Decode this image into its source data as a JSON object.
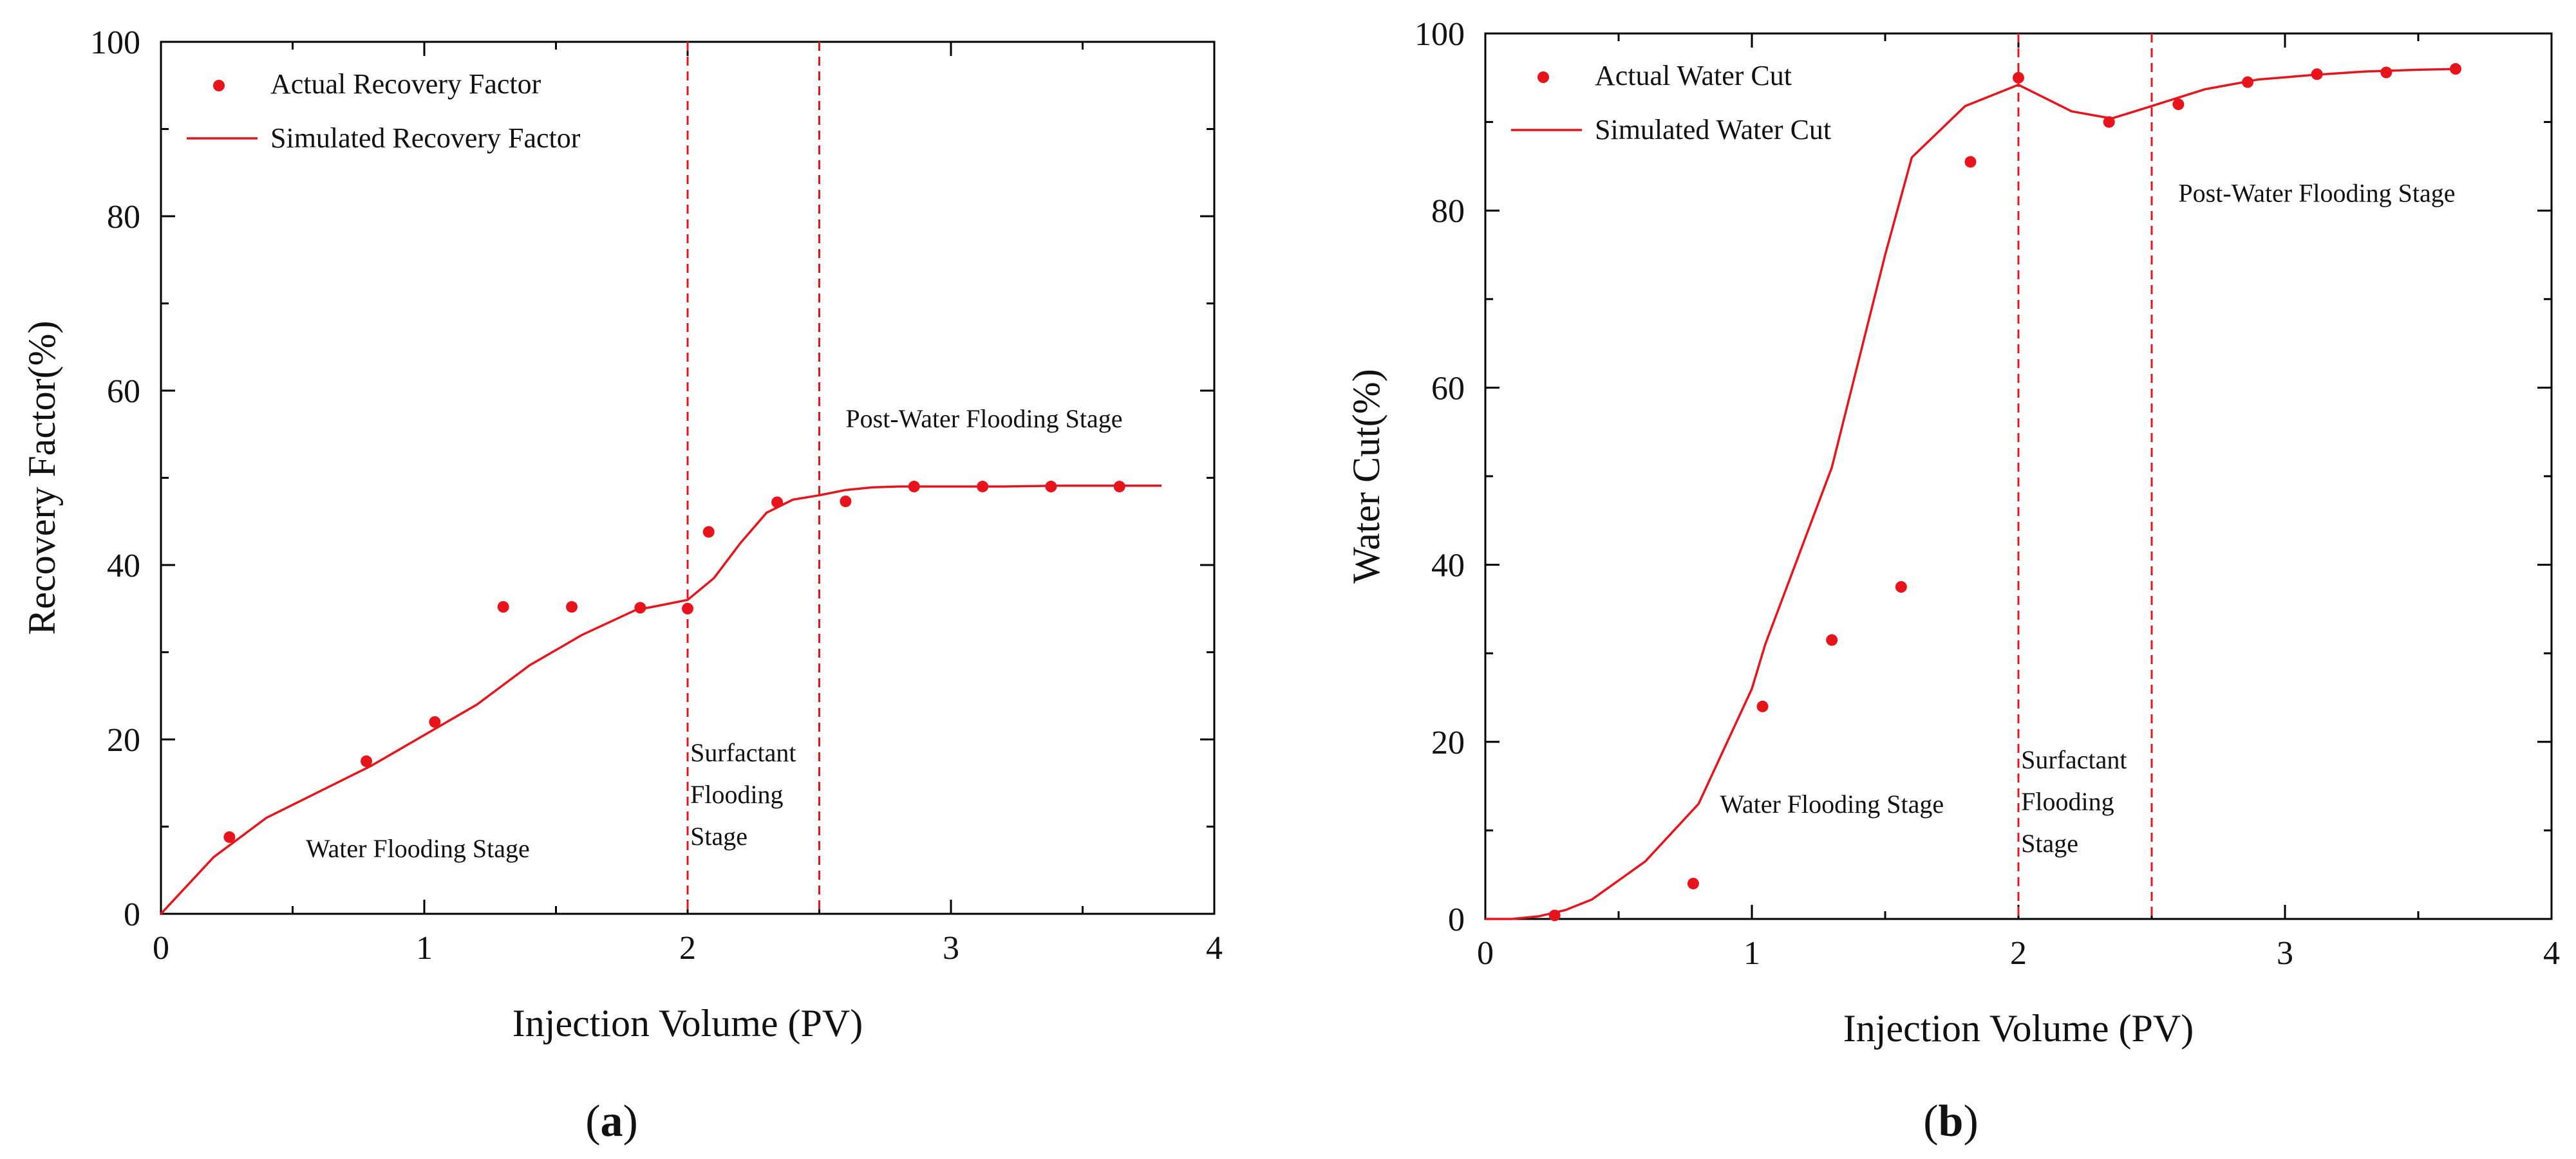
{
  "colors": {
    "series": "#e8141c",
    "axis": "#000000",
    "stage_line": "#e8141c"
  },
  "charts": [
    {
      "caption_letter": "a",
      "chart_data": {
        "type": "line",
        "xlabel": "Injection Volume (PV)",
        "ylabel": "Recovery Factor(%)",
        "xlim": [
          0,
          4
        ],
        "ylim": [
          0,
          100
        ],
        "xticks": [
          0,
          1,
          2,
          3,
          4
        ],
        "yticks": [
          0,
          20,
          40,
          60,
          80,
          100
        ],
        "legend_position": "top-left",
        "series": [
          {
            "name": "Actual Recovery Factor",
            "kind": "scatter",
            "x": [
              0.26,
              0.78,
              1.04,
              1.3,
              1.56,
              1.82,
              2.0,
              2.08,
              2.34,
              2.6,
              2.86,
              3.12,
              3.38,
              3.64
            ],
            "y": [
              8.8,
              17.5,
              22.0,
              35.2,
              35.2,
              35.1,
              35.0,
              43.8,
              47.2,
              47.3,
              49.0,
              49.0,
              49.0,
              49.0
            ]
          },
          {
            "name": "Simulated Recovery Factor",
            "kind": "line",
            "x": [
              0,
              0.2,
              0.4,
              0.6,
              0.8,
              1.0,
              1.2,
              1.4,
              1.6,
              1.8,
              2.0,
              2.1,
              2.2,
              2.3,
              2.4,
              2.5,
              2.6,
              2.7,
              2.8,
              3.0,
              3.2,
              3.4,
              3.6,
              3.8
            ],
            "y": [
              0,
              6.5,
              11,
              14,
              17,
              20.5,
              24,
              28.5,
              32,
              34.8,
              36,
              38.5,
              42.5,
              46,
              47.5,
              48,
              48.6,
              48.9,
              49,
              49,
              49,
              49.1,
              49.1,
              49.1
            ]
          }
        ],
        "stage_lines": [
          2.0,
          2.5
        ],
        "annotations": [
          {
            "lines": [
              "Water Flooding Stage"
            ],
            "x": 0.55,
            "y": 6.5
          },
          {
            "lines": [
              "Surfactant",
              "Flooding",
              "Stage"
            ],
            "x": 2.01,
            "y": 17.5
          },
          {
            "lines": [
              "Post-Water Flooding Stage"
            ],
            "x": 2.6,
            "y": 55.8
          }
        ]
      }
    },
    {
      "caption_letter": "b",
      "chart_data": {
        "type": "line",
        "xlabel": "Injection Volume (PV)",
        "ylabel": "Water Cut(%)",
        "xlim": [
          0,
          4
        ],
        "ylim": [
          0,
          100
        ],
        "xticks": [
          0,
          1,
          2,
          3,
          4
        ],
        "yticks": [
          0,
          20,
          40,
          60,
          80,
          100
        ],
        "legend_position": "top-left",
        "series": [
          {
            "name": "Actual Water Cut",
            "kind": "scatter",
            "x": [
              0.26,
              0.78,
              1.04,
              1.3,
              1.56,
              1.82,
              2.0,
              2.34,
              2.6,
              2.86,
              3.12,
              3.38,
              3.64
            ],
            "y": [
              0.4,
              4.0,
              24.0,
              31.5,
              37.5,
              85.5,
              95.0,
              90.0,
              92.0,
              94.5,
              95.4,
              95.6,
              96.0
            ]
          },
          {
            "name": "Simulated Water Cut",
            "kind": "line",
            "x": [
              0,
              0.1,
              0.2,
              0.3,
              0.4,
              0.6,
              0.8,
              1.0,
              1.05,
              1.2,
              1.3,
              1.4,
              1.5,
              1.6,
              1.8,
              2.0,
              2.1,
              2.2,
              2.35,
              2.5,
              2.7,
              2.9,
              3.1,
              3.3,
              3.5,
              3.65
            ],
            "y": [
              0,
              0,
              0.3,
              1.0,
              2.2,
              6.5,
              13,
              26,
              31,
              43,
              51,
              63,
              75,
              86,
              91.8,
              94.2,
              92.7,
              91.2,
              90.4,
              91.8,
              93.7,
              94.8,
              95.3,
              95.7,
              95.9,
              96.0
            ]
          }
        ],
        "stage_lines": [
          2.0,
          2.5
        ],
        "annotations": [
          {
            "lines": [
              "Water Flooding Stage"
            ],
            "x": 0.88,
            "y": 12.0
          },
          {
            "lines": [
              "Surfactant",
              "Flooding",
              "Stage"
            ],
            "x": 2.01,
            "y": 17.0
          },
          {
            "lines": [
              "Post-Water Flooding Stage"
            ],
            "x": 2.6,
            "y": 81.0
          }
        ]
      }
    }
  ]
}
